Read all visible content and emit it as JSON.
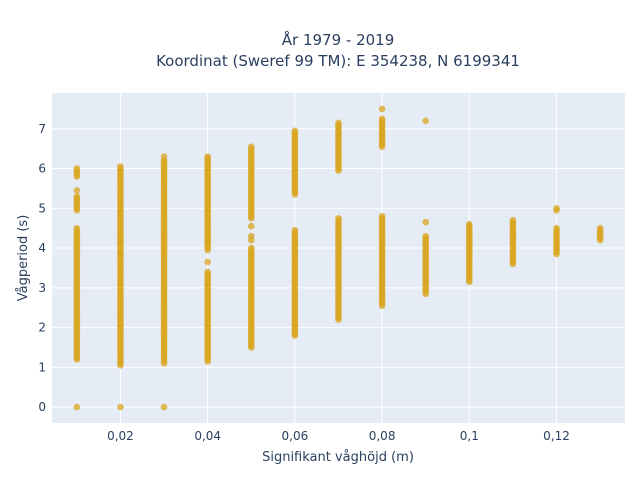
{
  "title_line1": "År 1979 - 2019",
  "title_line2": "Koordinat (Sweref 99 TM): E 354238, N 6199341",
  "chart_data": {
    "type": "scatter",
    "title": "År 1979 - 2019 / Koordinat (Sweref 99 TM): E 354238, N 6199341",
    "xlabel": "Signifikant våghöjd (m)",
    "ylabel": "Vågperiod (s)",
    "xlim": [
      0.0043,
      0.1357
    ],
    "ylim": [
      -0.4,
      7.9
    ],
    "x_ticks": [
      0.02,
      0.04,
      0.06,
      0.08,
      0.1,
      0.12
    ],
    "x_tick_labels": [
      "0,02",
      "0,04",
      "0,06",
      "0,08",
      "0,1",
      "0,12"
    ],
    "y_ticks": [
      0,
      1,
      2,
      3,
      4,
      5,
      6,
      7
    ],
    "y_tick_labels": [
      "0",
      "1",
      "2",
      "3",
      "4",
      "5",
      "6",
      "7"
    ],
    "grid": true,
    "marker_color": "#DAA520",
    "columns": [
      {
        "x": 0.01,
        "ranges": [
          [
            1.2,
            4.5
          ],
          [
            4.95,
            5.3
          ],
          [
            5.8,
            6.0
          ]
        ],
        "points": [
          0,
          5.45
        ]
      },
      {
        "x": 0.02,
        "ranges": [
          [
            1.05,
            6.0
          ]
        ],
        "points": [
          0,
          6.05
        ]
      },
      {
        "x": 0.03,
        "ranges": [
          [
            1.1,
            6.2
          ]
        ],
        "points": [
          0,
          6.3
        ]
      },
      {
        "x": 0.04,
        "ranges": [
          [
            1.15,
            3.4
          ],
          [
            3.95,
            6.3
          ]
        ],
        "points": [
          3.65
        ]
      },
      {
        "x": 0.05,
        "ranges": [
          [
            1.5,
            4.0
          ],
          [
            4.75,
            6.55
          ]
        ],
        "points": [
          4.2,
          4.3,
          4.55
        ]
      },
      {
        "x": 0.06,
        "ranges": [
          [
            1.8,
            4.45
          ],
          [
            5.35,
            6.95
          ]
        ],
        "points": []
      },
      {
        "x": 0.07,
        "ranges": [
          [
            2.2,
            4.75
          ],
          [
            5.95,
            7.15
          ]
        ],
        "points": []
      },
      {
        "x": 0.08,
        "ranges": [
          [
            2.55,
            4.8
          ],
          [
            6.55,
            7.25
          ]
        ],
        "points": [
          7.5
        ]
      },
      {
        "x": 0.09,
        "ranges": [
          [
            2.85,
            4.3
          ]
        ],
        "points": [
          4.65,
          7.2
        ]
      },
      {
        "x": 0.1,
        "ranges": [
          [
            3.15,
            4.6
          ]
        ],
        "points": []
      },
      {
        "x": 0.11,
        "ranges": [
          [
            3.6,
            4.7
          ]
        ],
        "points": []
      },
      {
        "x": 0.12,
        "ranges": [
          [
            3.85,
            4.5
          ]
        ],
        "points": [
          4.95,
          5.0
        ]
      },
      {
        "x": 0.13,
        "ranges": [
          [
            4.2,
            4.5
          ]
        ],
        "points": []
      }
    ]
  }
}
